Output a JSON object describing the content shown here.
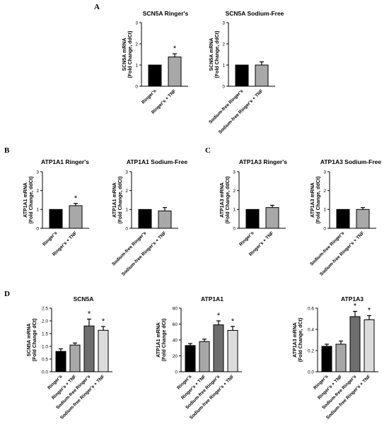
{
  "panel_labels": [
    "A",
    "B",
    "C",
    "D"
  ],
  "chart_data": [
    {
      "type": "bar",
      "panel": "A",
      "title": "SCN5A Ringer's",
      "ylabel": "SCN5A mRNA\n(Fold Change, ddCt)",
      "categories": [
        "Ringer's",
        "Ringer's + TNF"
      ],
      "values": [
        1.0,
        1.38
      ],
      "errors": [
        0,
        0.15
      ],
      "significant": [
        false,
        true
      ],
      "ylim": [
        0,
        3
      ],
      "yticks": [
        "0",
        "1",
        "2",
        "3"
      ],
      "colors": [
        "#000000",
        "#a8a8a8"
      ]
    },
    {
      "type": "bar",
      "panel": "A",
      "title": "SCN5A Sodium-Free",
      "ylabel": "SCN5A mRNA\n(Fold Change, ddCt)",
      "categories": [
        "Sodium-free Ringer's",
        "Sodium-free Ringer's + TNF"
      ],
      "values": [
        1.0,
        1.0
      ],
      "errors": [
        0,
        0.15
      ],
      "significant": [
        false,
        false
      ],
      "ylim": [
        0,
        3
      ],
      "yticks": [
        "0",
        "1",
        "2",
        "3"
      ],
      "colors": [
        "#000000",
        "#a8a8a8"
      ]
    },
    {
      "type": "bar",
      "panel": "B",
      "title": "ATP1A1 Ringer's",
      "ylabel": "ATP1A1 mRNA\n(Fold Change, ddCt)",
      "categories": [
        "Ringer's",
        "Ringer's + TNF"
      ],
      "values": [
        1.0,
        1.2
      ],
      "errors": [
        0,
        0.12
      ],
      "significant": [
        false,
        true
      ],
      "ylim": [
        0,
        3
      ],
      "yticks": [
        "0",
        "1",
        "2",
        "3"
      ],
      "colors": [
        "#000000",
        "#a8a8a8"
      ]
    },
    {
      "type": "bar",
      "panel": "B",
      "title": "ATP1A1 Sodium-Free",
      "ylabel": "ATP1A1 mRNA\n(Fold Change, ddCt)",
      "categories": [
        "Sodium-free Ringer's",
        "Sodium-free Ringer's + TNF"
      ],
      "values": [
        1.0,
        0.92
      ],
      "errors": [
        0,
        0.18
      ],
      "significant": [
        false,
        false
      ],
      "ylim": [
        0,
        3
      ],
      "yticks": [
        "0",
        "1",
        "2",
        "3"
      ],
      "colors": [
        "#000000",
        "#a8a8a8"
      ]
    },
    {
      "type": "bar",
      "panel": "C",
      "title": "ATP1A3 Ringer's",
      "ylabel": "ATP1A3 mRNA\n(Fold Change, ddCt)",
      "categories": [
        "Ringer's",
        "Ringer's + TNF"
      ],
      "values": [
        1.0,
        1.1
      ],
      "errors": [
        0,
        0.12
      ],
      "significant": [
        false,
        false
      ],
      "ylim": [
        0,
        3
      ],
      "yticks": [
        "0",
        "1",
        "2",
        "3"
      ],
      "colors": [
        "#000000",
        "#a8a8a8"
      ]
    },
    {
      "type": "bar",
      "panel": "C",
      "title": "ATP1A3 Sodium-Free",
      "ylabel": "ATP1A3 mRNA\n(Fold Change, ddCt)",
      "categories": [
        "Sodium-free Ringer's",
        "Sodium-free Ringer's + TNF"
      ],
      "values": [
        1.0,
        1.0
      ],
      "errors": [
        0,
        0.1
      ],
      "significant": [
        false,
        false
      ],
      "ylim": [
        0,
        3
      ],
      "yticks": [
        "0",
        "1",
        "2",
        "3"
      ],
      "colors": [
        "#000000",
        "#a8a8a8"
      ]
    },
    {
      "type": "bar",
      "panel": "D",
      "title": "SCN5A",
      "ylabel": "SCN5A mRNA\n(Fold Change dCt)",
      "categories": [
        "Ringer's",
        "Ringer's + TNF",
        "Sodium-free Ringer's",
        "Sodium-free Ringer's + TNF"
      ],
      "values": [
        0.8,
        1.05,
        1.8,
        1.63
      ],
      "errors": [
        0.1,
        0.08,
        0.27,
        0.15
      ],
      "significant": [
        false,
        false,
        true,
        true
      ],
      "ylim": [
        0,
        2.5
      ],
      "yticks": [
        "0.0",
        "0.5",
        "1.0",
        "1.5",
        "2.0",
        "2.5"
      ],
      "colors": [
        "#000000",
        "#a8a8a8",
        "#6e6e6e",
        "#dcdcdc"
      ]
    },
    {
      "type": "bar",
      "panel": "D",
      "title": "ATP1A1",
      "ylabel": "ATP1A1 mRNA\n(Fold Change dCt)",
      "categories": [
        "Ringer's",
        "Ringer's + TNF",
        "Sodium-free Ringer's",
        "Sodium-free Ringer's + TNF"
      ],
      "values": [
        33,
        38,
        59,
        52
      ],
      "errors": [
        2.5,
        3,
        5,
        5
      ],
      "significant": [
        false,
        false,
        true,
        true
      ],
      "ylim": [
        0,
        80
      ],
      "yticks": [
        "0",
        "20",
        "40",
        "60",
        "80"
      ],
      "colors": [
        "#000000",
        "#a8a8a8",
        "#6e6e6e",
        "#dcdcdc"
      ]
    },
    {
      "type": "bar",
      "panel": "D",
      "title": "ATP1A3",
      "ylabel": "ATP1A3 mRNA\n(Fold Change, dCt)",
      "categories": [
        "Ringer's",
        "Ringer's + TNF",
        "Sodium-free Ringer's",
        "Sodium-free Ringer's + TNF"
      ],
      "values": [
        0.24,
        0.26,
        0.52,
        0.49
      ],
      "errors": [
        0.02,
        0.03,
        0.05,
        0.04
      ],
      "significant": [
        false,
        false,
        true,
        true
      ],
      "ylim": [
        0,
        0.6
      ],
      "yticks": [
        "0.0",
        "0.2",
        "0.4",
        "0.6"
      ],
      "colors": [
        "#000000",
        "#a8a8a8",
        "#6e6e6e",
        "#dcdcdc"
      ]
    }
  ]
}
